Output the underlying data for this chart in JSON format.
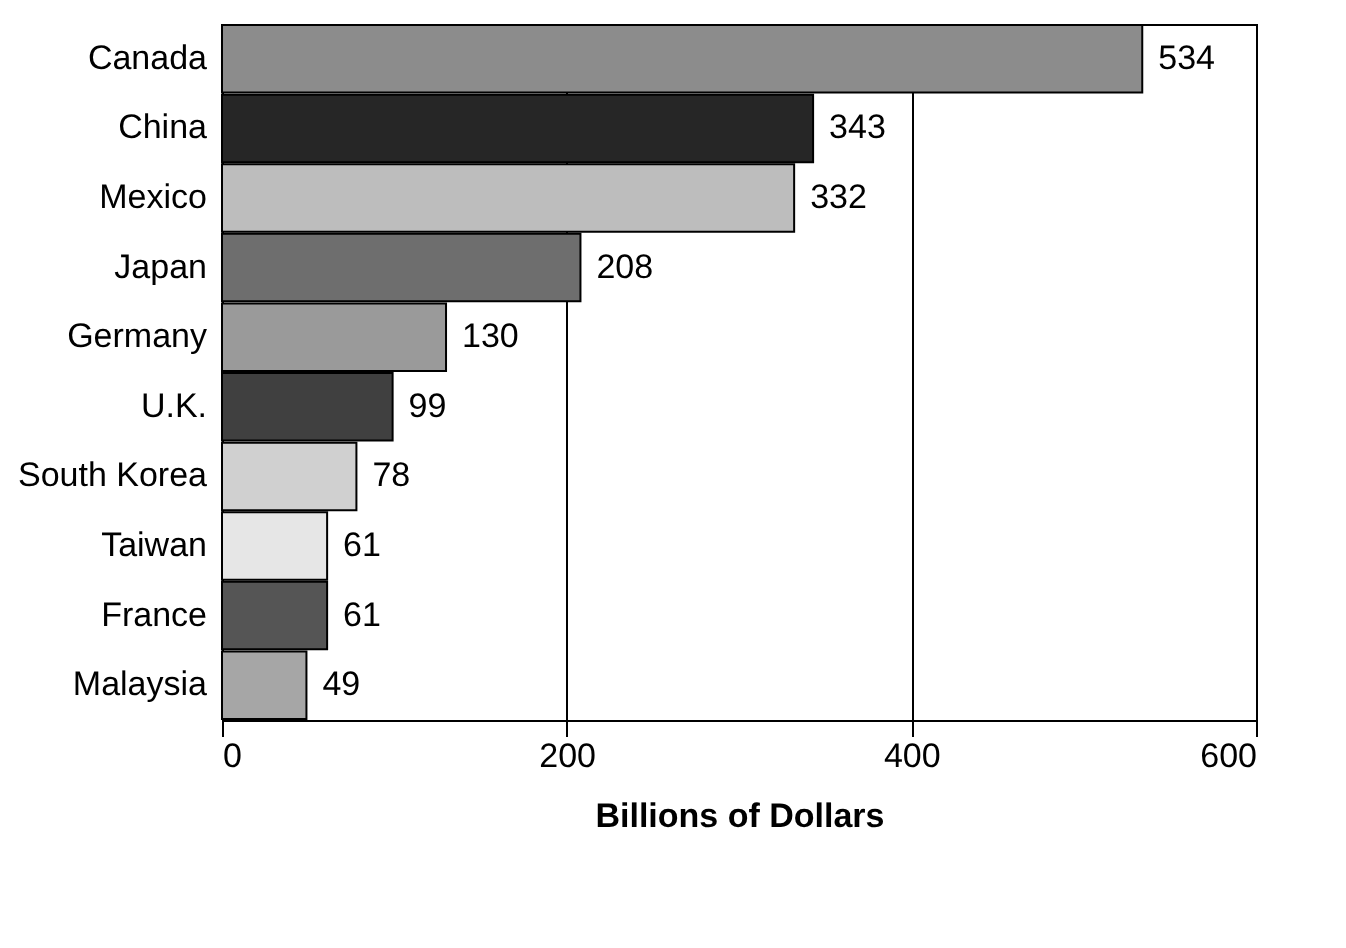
{
  "chart_data": {
    "type": "bar",
    "orientation": "horizontal",
    "xlabel": "Billions of Dollars",
    "categories": [
      "Canada",
      "China",
      "Mexico",
      "Japan",
      "Germany",
      "U.K.",
      "South Korea",
      "Taiwan",
      "France",
      "Malaysia"
    ],
    "values": [
      534,
      343,
      332,
      208,
      130,
      99,
      78,
      61,
      61,
      49
    ],
    "colors": [
      "#8c8c8c",
      "#262626",
      "#bdbdbd",
      "#6e6e6e",
      "#9a9a9a",
      "#404040",
      "#d0d0d0",
      "#e6e6e6",
      "#555555",
      "#a6a6a6"
    ],
    "xlim": [
      0,
      600
    ],
    "xticks": [
      0,
      200,
      400,
      600
    ],
    "grid": "x",
    "data_labels": true
  }
}
